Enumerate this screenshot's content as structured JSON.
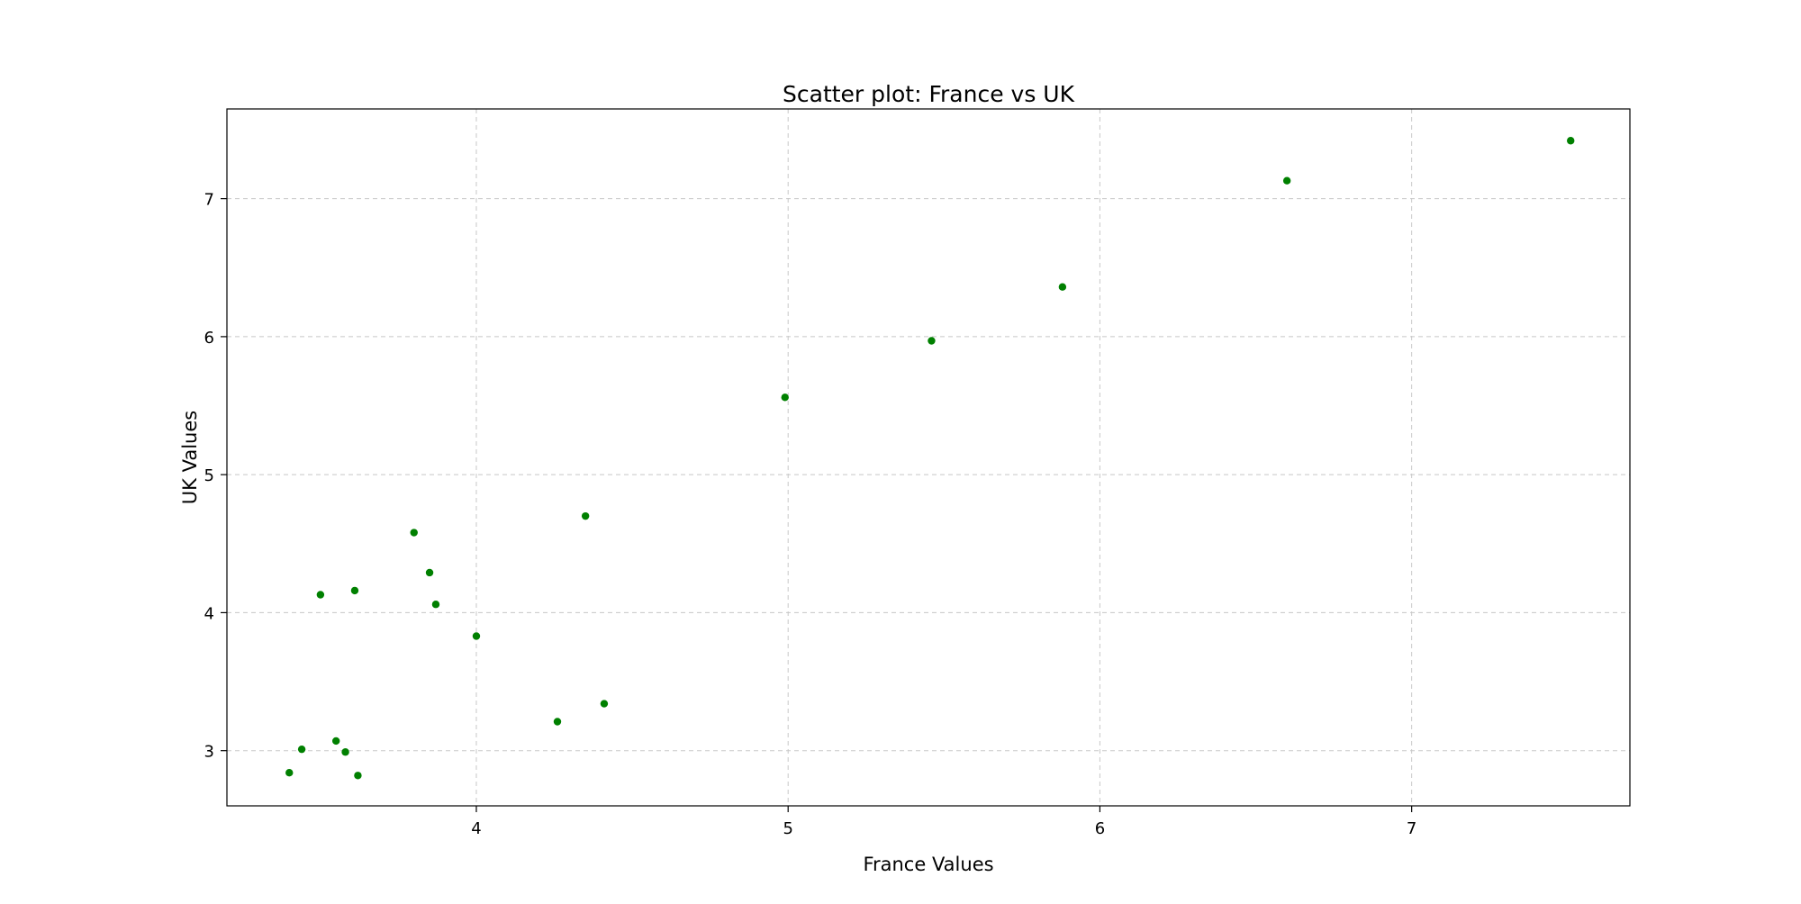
{
  "chart_data": {
    "type": "scatter",
    "title": "Scatter plot: France vs UK",
    "xlabel": "France Values",
    "ylabel": "UK Values",
    "xlim": [
      3.2,
      7.7
    ],
    "ylim": [
      2.6,
      7.65
    ],
    "xticks": [
      4,
      5,
      6,
      7
    ],
    "yticks": [
      3,
      4,
      5,
      6,
      7
    ],
    "grid": true,
    "marker_color": "#008000",
    "points": [
      {
        "x": 3.4,
        "y": 2.84
      },
      {
        "x": 3.44,
        "y": 3.01
      },
      {
        "x": 3.5,
        "y": 4.13
      },
      {
        "x": 3.55,
        "y": 3.07
      },
      {
        "x": 3.58,
        "y": 2.99
      },
      {
        "x": 3.61,
        "y": 4.16
      },
      {
        "x": 3.62,
        "y": 2.82
      },
      {
        "x": 3.8,
        "y": 4.58
      },
      {
        "x": 3.85,
        "y": 4.29
      },
      {
        "x": 3.87,
        "y": 4.06
      },
      {
        "x": 4.0,
        "y": 3.83
      },
      {
        "x": 4.26,
        "y": 3.21
      },
      {
        "x": 4.35,
        "y": 4.7
      },
      {
        "x": 4.41,
        "y": 3.34
      },
      {
        "x": 4.99,
        "y": 5.56
      },
      {
        "x": 5.46,
        "y": 5.97
      },
      {
        "x": 5.88,
        "y": 6.36
      },
      {
        "x": 6.6,
        "y": 7.13
      },
      {
        "x": 7.51,
        "y": 7.42
      }
    ]
  }
}
